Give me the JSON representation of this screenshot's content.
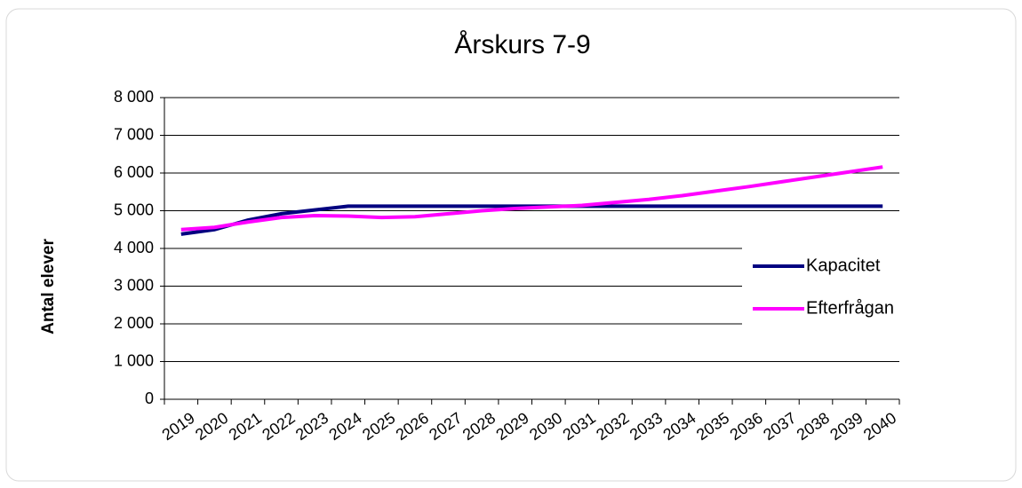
{
  "chart_data": {
    "type": "line",
    "title": "Årskurs 7-9",
    "y_label": "Antal elever",
    "categories": [
      "2019",
      "2020",
      "2021",
      "2022",
      "2023",
      "2024",
      "2025",
      "2026",
      "2027",
      "2028",
      "2029",
      "2030",
      "2031",
      "2032",
      "2033",
      "2034",
      "2035",
      "2036",
      "2037",
      "2038",
      "2039",
      "2040"
    ],
    "series": [
      {
        "name": "Kapacitet",
        "color": "#000080",
        "values": [
          4380,
          4500,
          4750,
          4920,
          5020,
          5120,
          5120,
          5120,
          5120,
          5120,
          5120,
          5120,
          5120,
          5120,
          5120,
          5120,
          5120,
          5120,
          5120,
          5120,
          5120,
          5120
        ]
      },
      {
        "name": "Efterfrågan",
        "color": "#ff00ff",
        "values": [
          4500,
          4560,
          4700,
          4820,
          4870,
          4860,
          4820,
          4840,
          4920,
          5000,
          5060,
          5100,
          5140,
          5220,
          5300,
          5400,
          5520,
          5640,
          5770,
          5900,
          6030,
          6160
        ]
      }
    ],
    "ylim": [
      0,
      8000
    ],
    "yticks": [
      0,
      {
        "value": 1000,
        "label": "1 000"
      },
      {
        "value": 2000,
        "label": "2 000"
      },
      {
        "value": 3000,
        "label": "3 000"
      },
      {
        "value": 4000,
        "label": "4 000"
      },
      {
        "value": 5000,
        "label": "5 000"
      },
      {
        "value": 6000,
        "label": "6 000"
      },
      {
        "value": 7000,
        "label": "7 000"
      },
      {
        "value": 8000,
        "label": "8 000"
      }
    ],
    "grid": true,
    "legend": "right"
  }
}
